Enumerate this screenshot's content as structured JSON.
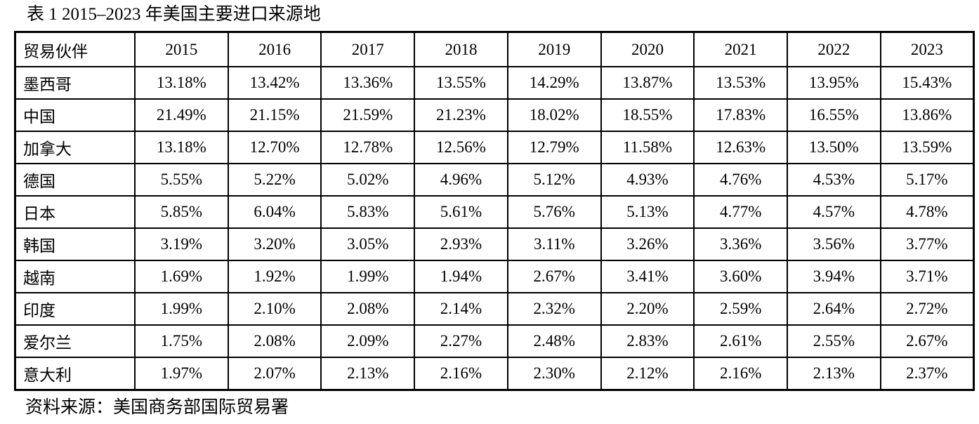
{
  "title": "表 1 2015–2023 年美国主要进口来源地",
  "footer": "资料来源：美国商务部国际贸易署",
  "table": {
    "header": [
      "贸易伙伴",
      "2015",
      "2016",
      "2017",
      "2018",
      "2019",
      "2020",
      "2021",
      "2022",
      "2023"
    ],
    "rows": [
      {
        "partner": "墨西哥",
        "values": [
          "13.18%",
          "13.42%",
          "13.36%",
          "13.55%",
          "14.29%",
          "13.87%",
          "13.53%",
          "13.95%",
          "15.43%"
        ]
      },
      {
        "partner": "中国",
        "values": [
          "21.49%",
          "21.15%",
          "21.59%",
          "21.23%",
          "18.02%",
          "18.55%",
          "17.83%",
          "16.55%",
          "13.86%"
        ]
      },
      {
        "partner": "加拿大",
        "values": [
          "13.18%",
          "12.70%",
          "12.78%",
          "12.56%",
          "12.79%",
          "11.58%",
          "12.63%",
          "13.50%",
          "13.59%"
        ]
      },
      {
        "partner": "德国",
        "values": [
          "5.55%",
          "5.22%",
          "5.02%",
          "4.96%",
          "5.12%",
          "4.93%",
          "4.76%",
          "4.53%",
          "5.17%"
        ]
      },
      {
        "partner": "日本",
        "values": [
          "5.85%",
          "6.04%",
          "5.83%",
          "5.61%",
          "5.76%",
          "5.13%",
          "4.77%",
          "4.57%",
          "4.78%"
        ]
      },
      {
        "partner": "韩国",
        "values": [
          "3.19%",
          "3.20%",
          "3.05%",
          "2.93%",
          "3.11%",
          "3.26%",
          "3.36%",
          "3.56%",
          "3.77%"
        ]
      },
      {
        "partner": "越南",
        "values": [
          "1.69%",
          "1.92%",
          "1.99%",
          "1.94%",
          "2.67%",
          "3.41%",
          "3.60%",
          "3.94%",
          "3.71%"
        ]
      },
      {
        "partner": "印度",
        "values": [
          "1.99%",
          "2.10%",
          "2.08%",
          "2.14%",
          "2.32%",
          "2.20%",
          "2.59%",
          "2.64%",
          "2.72%"
        ]
      },
      {
        "partner": "爱尔兰",
        "values": [
          "1.75%",
          "2.08%",
          "2.09%",
          "2.27%",
          "2.48%",
          "2.83%",
          "2.61%",
          "2.55%",
          "2.67%"
        ]
      },
      {
        "partner": "意大利",
        "values": [
          "1.97%",
          "2.07%",
          "2.13%",
          "2.16%",
          "2.30%",
          "2.12%",
          "2.16%",
          "2.13%",
          "2.37%"
        ]
      }
    ]
  },
  "chart_data": {
    "type": "table",
    "title": "表 1 2015–2023 年美国主要进口来源地",
    "categories": [
      "2015",
      "2016",
      "2017",
      "2018",
      "2019",
      "2020",
      "2021",
      "2022",
      "2023"
    ],
    "unit": "%",
    "series": [
      {
        "name": "墨西哥",
        "values": [
          13.18,
          13.42,
          13.36,
          13.55,
          14.29,
          13.87,
          13.53,
          13.95,
          15.43
        ]
      },
      {
        "name": "中国",
        "values": [
          21.49,
          21.15,
          21.59,
          21.23,
          18.02,
          18.55,
          17.83,
          16.55,
          13.86
        ]
      },
      {
        "name": "加拿大",
        "values": [
          13.18,
          12.7,
          12.78,
          12.56,
          12.79,
          11.58,
          12.63,
          13.5,
          13.59
        ]
      },
      {
        "name": "德国",
        "values": [
          5.55,
          5.22,
          5.02,
          4.96,
          5.12,
          4.93,
          4.76,
          4.53,
          5.17
        ]
      },
      {
        "name": "日本",
        "values": [
          5.85,
          6.04,
          5.83,
          5.61,
          5.76,
          5.13,
          4.77,
          4.57,
          4.78
        ]
      },
      {
        "name": "韩国",
        "values": [
          3.19,
          3.2,
          3.05,
          2.93,
          3.11,
          3.26,
          3.36,
          3.56,
          3.77
        ]
      },
      {
        "name": "越南",
        "values": [
          1.69,
          1.92,
          1.99,
          1.94,
          2.67,
          3.41,
          3.6,
          3.94,
          3.71
        ]
      },
      {
        "name": "印度",
        "values": [
          1.99,
          2.1,
          2.08,
          2.14,
          2.32,
          2.2,
          2.59,
          2.64,
          2.72
        ]
      },
      {
        "name": "爱尔兰",
        "values": [
          1.75,
          2.08,
          2.09,
          2.27,
          2.48,
          2.83,
          2.61,
          2.55,
          2.67
        ]
      },
      {
        "name": "意大利",
        "values": [
          1.97,
          2.07,
          2.13,
          2.16,
          2.3,
          2.12,
          2.16,
          2.13,
          2.37
        ]
      }
    ],
    "source": "资料来源：美国商务部国际贸易署"
  }
}
